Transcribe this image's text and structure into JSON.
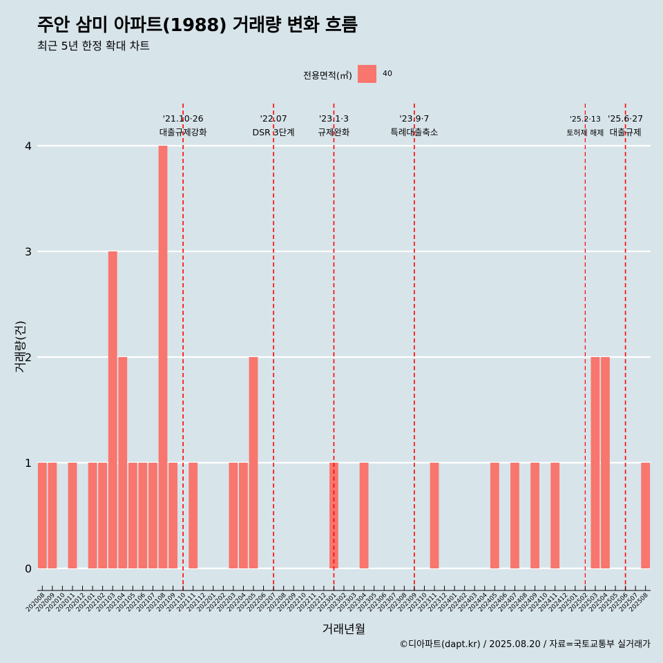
{
  "header": {
    "title": "주안 삼미 아파트(1988) 거래량 변화 흐름",
    "subtitle": "최근 5년 한정 확대 차트"
  },
  "legend": {
    "title": "전용면적(㎡)",
    "label": "40",
    "color": "#f8766d"
  },
  "caption": "©디아파트(dapt.kr) / 2025.08.20 / 자료=국토교통부 실거래가",
  "chart_data": {
    "type": "bar",
    "xlabel": "거래년월",
    "ylabel": "거래량(건)",
    "ylim": [
      0,
      4
    ],
    "yticks": [
      0,
      1,
      2,
      3,
      4
    ],
    "grid": true,
    "legend_position": "top",
    "categories": [
      "202008",
      "202009",
      "202010",
      "202011",
      "202012",
      "202101",
      "202102",
      "202103",
      "202104",
      "202105",
      "202106",
      "202107",
      "202108",
      "202109",
      "202110",
      "202111",
      "202112",
      "202201",
      "202202",
      "202203",
      "202204",
      "202205",
      "202206",
      "202207",
      "202208",
      "202209",
      "202210",
      "202211",
      "202212",
      "202301",
      "202302",
      "202303",
      "202304",
      "202305",
      "202306",
      "202307",
      "202308",
      "202309",
      "202310",
      "202311",
      "202312",
      "202401",
      "202402",
      "202403",
      "202404",
      "202405",
      "202406",
      "202407",
      "202408",
      "202409",
      "202410",
      "202411",
      "202412",
      "202501",
      "202502",
      "202503",
      "202504",
      "202505",
      "202506",
      "202507",
      "202508"
    ],
    "series": [
      {
        "name": "40",
        "color": "#f8766d",
        "values": [
          1,
          1,
          0,
          1,
          0,
          1,
          1,
          3,
          2,
          1,
          1,
          1,
          4,
          1,
          0,
          1,
          0,
          0,
          0,
          1,
          1,
          2,
          0,
          0,
          0,
          0,
          0,
          0,
          0,
          1,
          0,
          0,
          1,
          0,
          0,
          0,
          0,
          0,
          0,
          1,
          0,
          0,
          0,
          0,
          0,
          1,
          0,
          1,
          0,
          1,
          0,
          1,
          0,
          0,
          0,
          2,
          2,
          0,
          0,
          0,
          1
        ]
      }
    ],
    "annotations": [
      {
        "x": "202110",
        "line1": "'21.10·26",
        "line2": "대출규제강화",
        "small": false
      },
      {
        "x": "202207",
        "line1": "'22.07",
        "line2": "DSR 3단계",
        "small": false
      },
      {
        "x": "202301",
        "line1": "'23.1·3",
        "line2": "규제완화",
        "small": false
      },
      {
        "x": "202309",
        "line1": "'23.9·7",
        "line2": "특례대출축소",
        "small": false
      },
      {
        "x": "202502",
        "line1": "'25.2·13",
        "line2": "토허제 해제",
        "small": true
      },
      {
        "x": "202506",
        "line1": "'25.6·27",
        "line2": "대출규제",
        "small": false
      }
    ]
  }
}
